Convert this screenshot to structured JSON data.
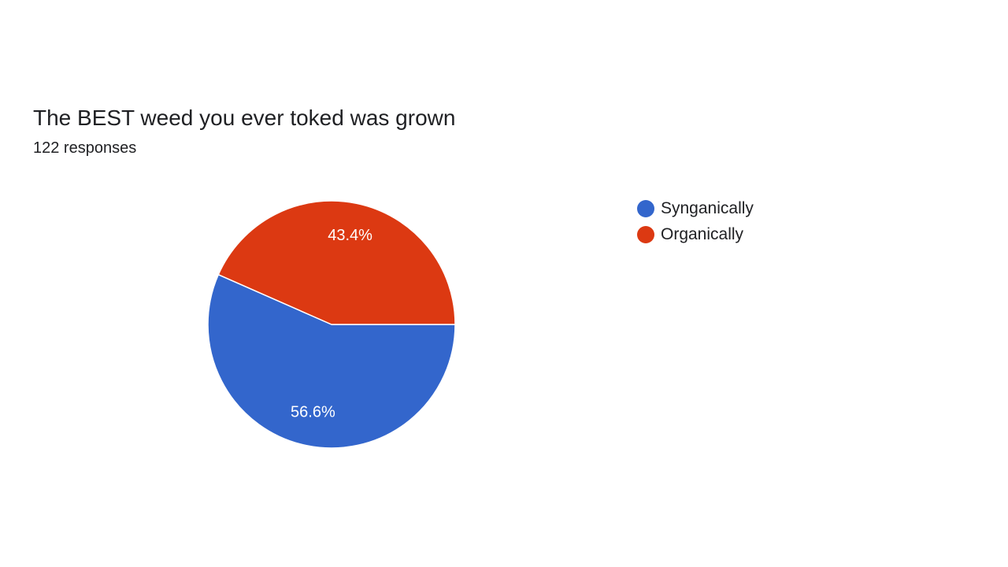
{
  "question": {
    "title": "The BEST weed you ever toked was grown",
    "responses": "122 responses"
  },
  "chart_data": {
    "type": "pie",
    "title": "The BEST weed you ever toked was grown",
    "subtitle": "122 responses",
    "slices": [
      {
        "label": "Synganically",
        "value": 56.6,
        "display": "56.6%",
        "color": "#3366cc"
      },
      {
        "label": "Organically",
        "value": 43.4,
        "display": "43.4%",
        "color": "#dc3912"
      }
    ],
    "legend_position": "right"
  }
}
